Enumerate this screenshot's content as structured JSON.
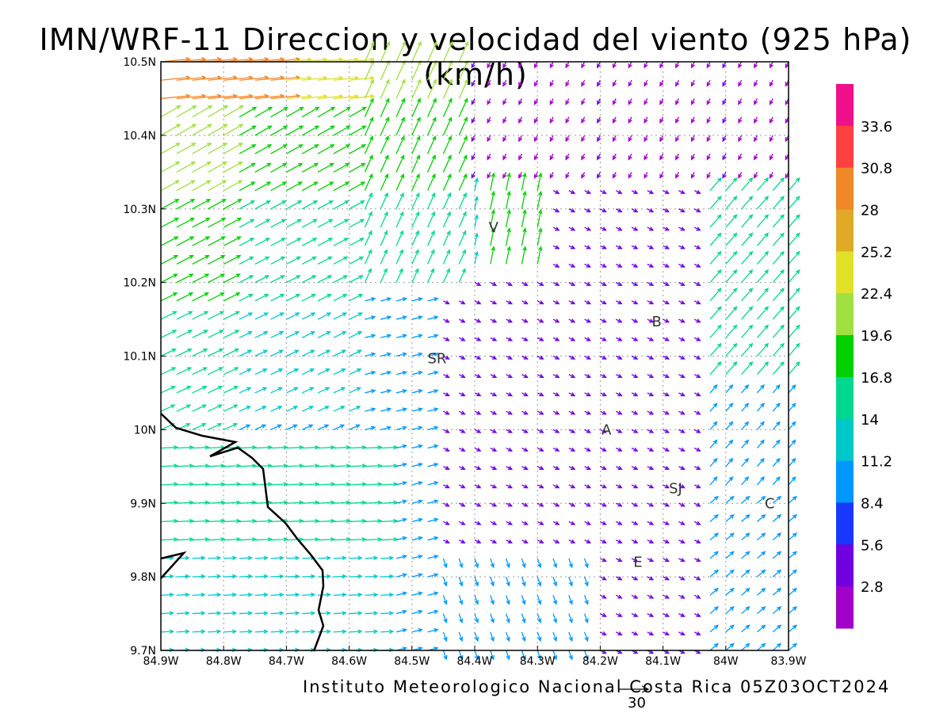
{
  "title": "IMN/WRF-11 Direccion y velocidad del viento (925 hPa)(km/h)",
  "credit": "Instituto Meteorologico Nacional Costa Rica 05Z03OCT2024",
  "reference_vector_label": "30",
  "axes": {
    "x_ticks": [
      "84.9W",
      "84.8W",
      "84.7W",
      "84.6W",
      "84.5W",
      "84.4W",
      "84.3W",
      "84.2W",
      "84.1W",
      "84W",
      "83.9W"
    ],
    "y_ticks": [
      "10.5N",
      "10.4N",
      "10.3N",
      "10.2N",
      "10.1N",
      "10N",
      "9.9N",
      "9.8N",
      "9.7N"
    ],
    "lon_range": [
      -84.9,
      -83.9
    ],
    "lat_range": [
      9.7,
      10.5
    ],
    "grid": true
  },
  "cities": [
    {
      "label": "V",
      "lon": -84.37,
      "lat": 10.275
    },
    {
      "label": "B",
      "lon": -84.11,
      "lat": 10.147
    },
    {
      "label": "SR",
      "lon": -84.46,
      "lat": 10.097
    },
    {
      "label": "A",
      "lon": -84.19,
      "lat": 10.0
    },
    {
      "label": "SJ",
      "lon": -84.08,
      "lat": 9.92
    },
    {
      "label": "C",
      "lon": -83.93,
      "lat": 9.9
    },
    {
      "label": "E",
      "lon": -84.14,
      "lat": 9.82
    }
  ],
  "colorbar": {
    "labels": [
      "33.6",
      "30.8",
      "28",
      "25.2",
      "22.4",
      "19.6",
      "16.8",
      "14",
      "11.2",
      "8.4",
      "5.6",
      "2.8"
    ],
    "colors": [
      "#f0108c",
      "#ff4040",
      "#f08828",
      "#e0aa28",
      "#e0e028",
      "#a0e040",
      "#00d000",
      "#00d890",
      "#00c8c8",
      "#0098ff",
      "#1838ff",
      "#7000e0",
      "#a000c8"
    ]
  },
  "chart_data": {
    "type": "vector_field",
    "variable": "wind direction and speed",
    "level": "925 hPa",
    "units": "km/h",
    "regions": [
      {
        "area": "west (84.9W-84.6W, 10.0N-10.5N)",
        "direction": "from SW/W toward NE/E",
        "speed_kmh": [
          11,
          25
        ]
      },
      {
        "area": "northwest corner near 10.45N-10.5N",
        "direction": "eastward",
        "speed_kmh": [
          22,
          31
        ]
      },
      {
        "area": "west (84.9W-84.55W, 9.7N-10.0N)",
        "direction": "eastward",
        "speed_kmh": [
          11,
          20
        ]
      },
      {
        "area": "central north (84.55W-84.45W, 10.2N-10.5N)",
        "direction": "northeastward",
        "speed_kmh": [
          14,
          22
        ]
      },
      {
        "area": "northeast (84.4W-83.9W, 10.35N-10.5N)",
        "direction": "southward/westward",
        "speed_kmh": [
          1,
          4
        ]
      },
      {
        "area": "central (84.4W-84.0W, 9.85N-10.2N)",
        "direction": "variable, light",
        "speed_kmh": [
          1,
          8
        ]
      },
      {
        "area": "south (84.5W-84.2W, 9.7N-9.85N)",
        "direction": "southeastward",
        "speed_kmh": [
          8,
          12
        ]
      },
      {
        "area": "east (84.0W-83.9W, 9.7N-10.1N)",
        "direction": "northeastward/northwestward",
        "speed_kmh": [
          8,
          20
        ]
      }
    ]
  }
}
